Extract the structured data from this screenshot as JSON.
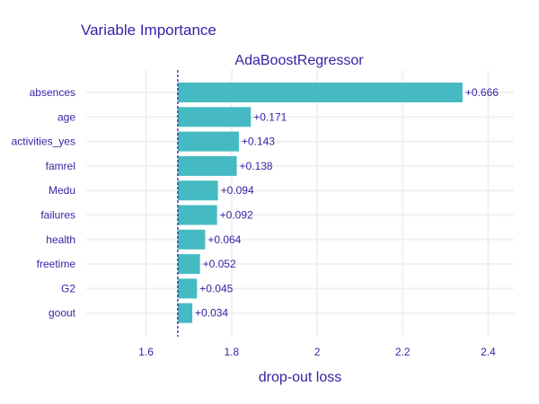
{
  "chart_data": {
    "type": "bar",
    "orientation": "horizontal",
    "title": "Variable Importance",
    "subtitle": "AdaBoostRegressor",
    "xlabel": "drop-out loss",
    "ylabel": "",
    "baseline": 1.674,
    "xlim": [
      1.46,
      2.46
    ],
    "xticks": [
      "1.6",
      "1.8",
      "2",
      "2.2",
      "2.4"
    ],
    "xtick_values": [
      1.6,
      1.8,
      2.0,
      2.2,
      2.4
    ],
    "categories": [
      "absences",
      "age",
      "activities_yes",
      "famrel",
      "Medu",
      "failures",
      "health",
      "freetime",
      "G2",
      "goout"
    ],
    "values": [
      0.666,
      0.171,
      0.143,
      0.138,
      0.094,
      0.092,
      0.064,
      0.052,
      0.045,
      0.034
    ],
    "value_labels": [
      "+0.666",
      "+0.171",
      "+0.143",
      "+0.138",
      "+0.094",
      "+0.092",
      "+0.064",
      "+0.052",
      "+0.045",
      "+0.034"
    ],
    "bar_color": "#46bac2",
    "text_color": "#371ea3",
    "grid": true,
    "legend": "none"
  }
}
